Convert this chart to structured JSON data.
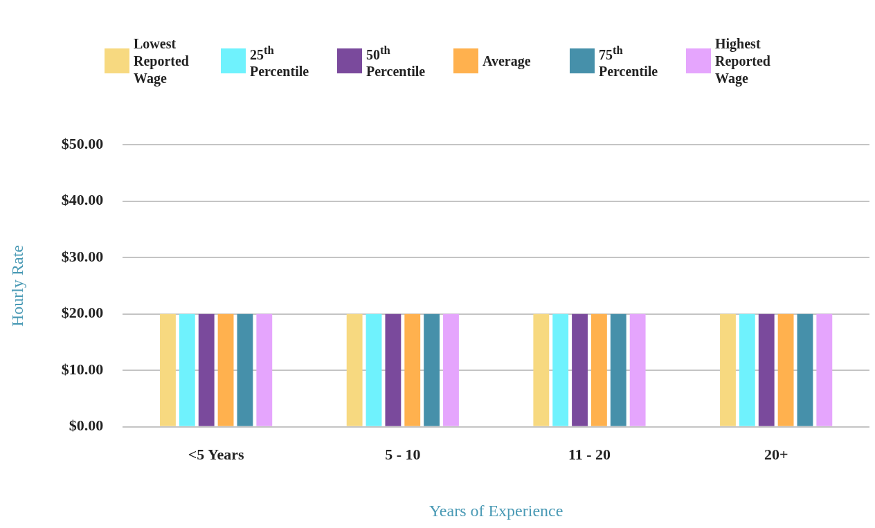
{
  "chart_data": {
    "type": "bar",
    "xlabel": "Years of Experience",
    "ylabel": "Hourly Rate",
    "categories": [
      "<5 Years",
      "5 - 10",
      "11 - 20",
      "20+"
    ],
    "series": [
      {
        "name": "Lowest Reported Wage",
        "color": "#f7d980",
        "values": [
          20,
          20,
          20,
          20
        ]
      },
      {
        "name": "25$^{th}$ Percentile",
        "color": "#6ff2fd",
        "values": [
          20,
          20,
          20,
          20
        ]
      },
      {
        "name": "50$^{th}$ Percentile",
        "color": "#7a4a9c",
        "values": [
          20,
          20,
          20,
          20
        ]
      },
      {
        "name": "Average",
        "color": "#ffb14e",
        "values": [
          20,
          20,
          20,
          20
        ]
      },
      {
        "name": "75$^{th}$ Percentile",
        "color": "#4690aa",
        "values": [
          20,
          20,
          20,
          20
        ]
      },
      {
        "name": "Highest Reported Wage",
        "color": "#e5a5fd",
        "values": [
          20,
          20,
          20,
          20
        ]
      }
    ],
    "ylim": [
      0,
      50
    ],
    "yticks": [
      {
        "value": 0,
        "label": "$0.00"
      },
      {
        "value": 10,
        "label": "$10.00"
      },
      {
        "value": 20,
        "label": "$20.00"
      },
      {
        "value": 30,
        "label": "$30.00"
      },
      {
        "value": 40,
        "label": "$40.00"
      },
      {
        "value": 50,
        "label": "$50.00"
      }
    ],
    "grid": "y",
    "legend": "top"
  }
}
